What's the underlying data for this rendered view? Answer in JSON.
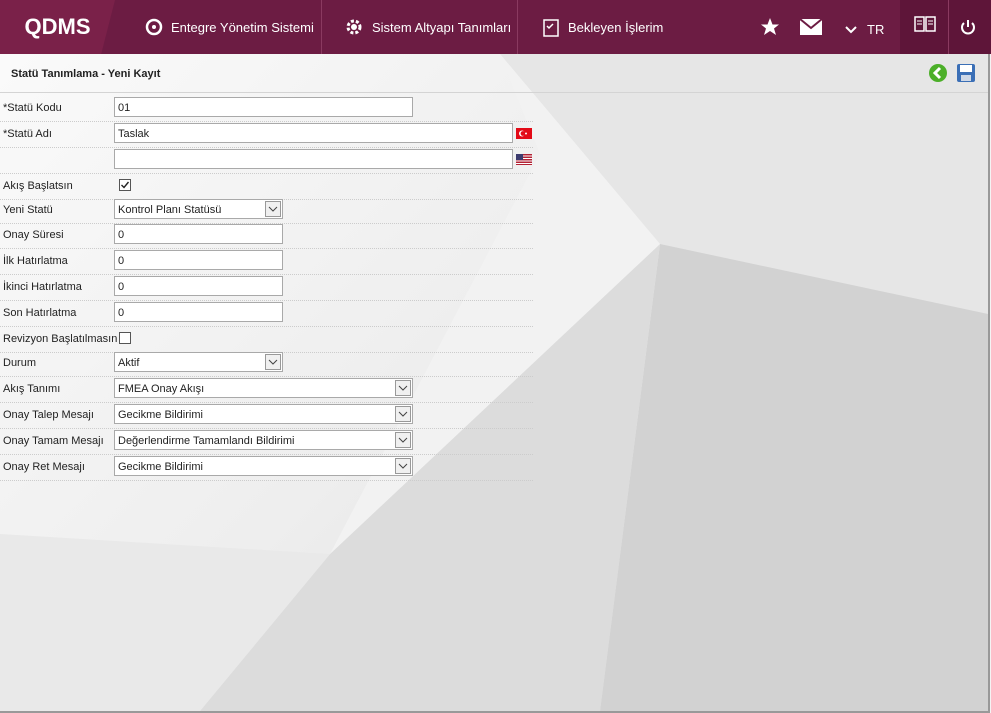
{
  "header": {
    "logo": "QDMS",
    "nav": [
      "Entegre Yönetim Sistemi",
      "Sistem Altyapı Tanımları",
      "Bekleyen İşlerim"
    ],
    "language": "TR"
  },
  "form": {
    "title": "Statü Tanımlama - Yeni Kayıt",
    "fields": [
      {
        "label": "*Statü Kodu",
        "value": "01"
      },
      {
        "label": "*Statü Adı",
        "value": "Taslak"
      },
      {},
      {
        "label": "Akış Başlatsın",
        "checked": true
      },
      {
        "label": "Yeni Statü",
        "value": "Kontrol Planı Statüsü"
      },
      {
        "label": "Onay Süresi",
        "value": "0"
      },
      {
        "label": "İlk Hatırlatma",
        "value": "0"
      },
      {
        "label": "İkinci Hatırlatma",
        "value": "0"
      },
      {
        "label": "Son Hatırlatma",
        "value": "0"
      },
      {
        "label": "Revizyon Başlatılmasın",
        "checked": false
      },
      {
        "label": "Durum",
        "value": "Aktif"
      },
      {
        "label": "Akış Tanımı",
        "value": "FMEA Onay Akışı"
      },
      {
        "label": "Onay Talep Mesajı",
        "value": "Gecikme Bildirimi"
      },
      {
        "label": "Onay Tamam Mesajı",
        "value": "Değerlendirme Tamamlandı Bildirimi"
      },
      {
        "label": "Onay Ret Mesajı",
        "value": "Gecikme Bildirimi"
      }
    ]
  }
}
